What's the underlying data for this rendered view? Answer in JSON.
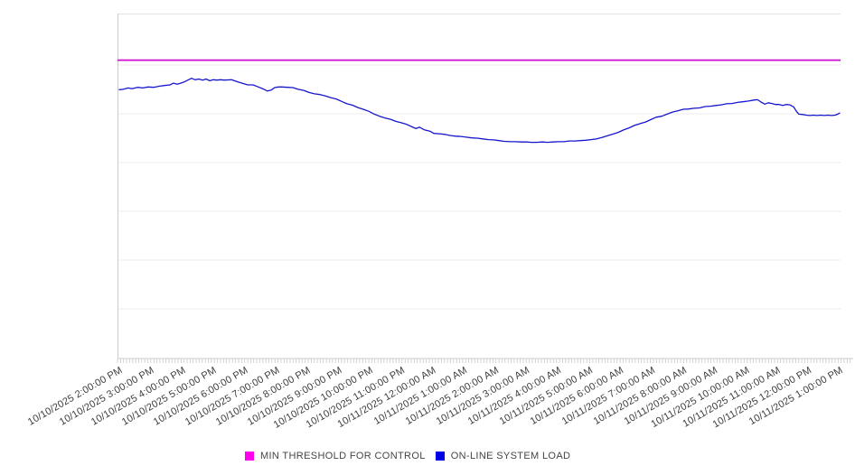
{
  "page": {
    "background": "#ffffff"
  },
  "legend": {
    "position": "bottom-center",
    "items": [
      {
        "label": "MIN THRESHOLD FOR CONTROL",
        "color": "#ff00ee"
      },
      {
        "label": "ON-LINE SYSTEM LOAD",
        "color": "#0000e6"
      }
    ]
  },
  "chart_data": {
    "type": "line",
    "title": "",
    "xlabel": "",
    "ylabel": "",
    "grid": "horizontal",
    "y_axis_tick_labels_visible": false,
    "value_units": "percent_of_plot_height",
    "ylim": [
      0,
      100
    ],
    "x_range_hours": [
      0,
      23
    ],
    "x_tick_labels": [
      "10/10/2025 2:00:00 PM",
      "10/10/2025 3:00:00 PM",
      "10/10/2025 4:00:00 PM",
      "10/10/2025 5:00:00 PM",
      "10/10/2025 6:00:00 PM",
      "10/10/2025 7:00:00 PM",
      "10/10/2025 8:00:00 PM",
      "10/10/2025 9:00:00 PM",
      "10/10/2025 10:00:00 PM",
      "10/10/2025 11:00:00 PM",
      "10/11/2025 12:00:00 AM",
      "10/11/2025 1:00:00 AM",
      "10/11/2025 2:00:00 AM",
      "10/11/2025 3:00:00 AM",
      "10/11/2025 4:00:00 AM",
      "10/11/2025 5:00:00 AM",
      "10/11/2025 6:00:00 AM",
      "10/11/2025 7:00:00 AM",
      "10/11/2025 8:00:00 AM",
      "10/11/2025 9:00:00 AM",
      "10/11/2025 10:00:00 AM",
      "10/11/2025 11:00:00 AM",
      "10/11/2025 12:00:00 PM",
      "10/11/2025 1:00:00 PM"
    ],
    "series": [
      {
        "name": "MIN THRESHOLD FOR CONTROL",
        "style": "horizontal-threshold",
        "color": "#cf0ccf",
        "value": 86.6
      },
      {
        "name": "ON-LINE SYSTEM LOAD",
        "style": "line",
        "color": "#1616cd",
        "points": [
          [
            0,
            78.0
          ],
          [
            0.12,
            78.1
          ],
          [
            0.29,
            78.5
          ],
          [
            0.4,
            78.3
          ],
          [
            0.58,
            78.7
          ],
          [
            0.75,
            78.5
          ],
          [
            0.92,
            78.8
          ],
          [
            1.1,
            78.7
          ],
          [
            1.27,
            79.0
          ],
          [
            1.44,
            79.2
          ],
          [
            1.62,
            79.4
          ],
          [
            1.73,
            79.9
          ],
          [
            1.85,
            79.6
          ],
          [
            1.96,
            79.9
          ],
          [
            2.08,
            80.3
          ],
          [
            2.19,
            80.8
          ],
          [
            2.31,
            81.3
          ],
          [
            2.42,
            80.9
          ],
          [
            2.54,
            81.1
          ],
          [
            2.66,
            80.8
          ],
          [
            2.77,
            81.1
          ],
          [
            2.89,
            80.6
          ],
          [
            3.0,
            80.9
          ],
          [
            3.12,
            80.8
          ],
          [
            3.23,
            80.9
          ],
          [
            3.35,
            80.8
          ],
          [
            3.58,
            80.9
          ],
          [
            3.75,
            80.4
          ],
          [
            3.92,
            79.9
          ],
          [
            4.1,
            79.4
          ],
          [
            4.27,
            79.4
          ],
          [
            4.44,
            78.8
          ],
          [
            4.62,
            78.1
          ],
          [
            4.73,
            77.6
          ],
          [
            4.85,
            77.9
          ],
          [
            4.96,
            78.6
          ],
          [
            5.08,
            78.8
          ],
          [
            5.19,
            78.8
          ],
          [
            5.37,
            78.7
          ],
          [
            5.54,
            78.6
          ],
          [
            5.71,
            78.1
          ],
          [
            5.89,
            77.8
          ],
          [
            6.06,
            77.2
          ],
          [
            6.23,
            76.8
          ],
          [
            6.41,
            76.6
          ],
          [
            6.58,
            76.2
          ],
          [
            6.75,
            75.7
          ],
          [
            6.93,
            75.3
          ],
          [
            7.1,
            74.6
          ],
          [
            7.27,
            73.9
          ],
          [
            7.45,
            73.5
          ],
          [
            7.62,
            72.8
          ],
          [
            7.79,
            72.3
          ],
          [
            7.97,
            71.7
          ],
          [
            8.14,
            70.9
          ],
          [
            8.31,
            70.3
          ],
          [
            8.48,
            69.8
          ],
          [
            8.66,
            69.4
          ],
          [
            8.83,
            68.8
          ],
          [
            9.0,
            68.4
          ],
          [
            9.18,
            67.9
          ],
          [
            9.35,
            67.2
          ],
          [
            9.47,
            66.7
          ],
          [
            9.58,
            67.1
          ],
          [
            9.75,
            66.3
          ],
          [
            9.93,
            65.9
          ],
          [
            10.04,
            65.3
          ],
          [
            10.22,
            65.2
          ],
          [
            10.39,
            65.0
          ],
          [
            10.56,
            64.7
          ],
          [
            10.74,
            64.5
          ],
          [
            10.91,
            64.4
          ],
          [
            11.08,
            64.2
          ],
          [
            11.26,
            64.0
          ],
          [
            11.43,
            63.9
          ],
          [
            11.6,
            63.7
          ],
          [
            11.78,
            63.5
          ],
          [
            11.95,
            63.4
          ],
          [
            12.12,
            63.2
          ],
          [
            12.29,
            63.0
          ],
          [
            12.47,
            62.9
          ],
          [
            12.64,
            62.9
          ],
          [
            12.81,
            62.8
          ],
          [
            12.99,
            62.8
          ],
          [
            13.16,
            62.7
          ],
          [
            13.33,
            62.7
          ],
          [
            13.51,
            62.8
          ],
          [
            13.68,
            62.7
          ],
          [
            13.85,
            62.8
          ],
          [
            14.03,
            62.9
          ],
          [
            14.2,
            62.9
          ],
          [
            14.37,
            63.1
          ],
          [
            14.55,
            63.1
          ],
          [
            14.72,
            63.2
          ],
          [
            14.89,
            63.3
          ],
          [
            15.06,
            63.5
          ],
          [
            15.24,
            63.7
          ],
          [
            15.41,
            64.1
          ],
          [
            15.58,
            64.6
          ],
          [
            15.76,
            65.1
          ],
          [
            15.93,
            65.6
          ],
          [
            16.1,
            66.3
          ],
          [
            16.28,
            66.9
          ],
          [
            16.45,
            67.6
          ],
          [
            16.62,
            68.1
          ],
          [
            16.8,
            68.6
          ],
          [
            16.97,
            69.3
          ],
          [
            17.14,
            70.0
          ],
          [
            17.32,
            70.3
          ],
          [
            17.49,
            70.9
          ],
          [
            17.66,
            71.5
          ],
          [
            17.84,
            71.9
          ],
          [
            18.01,
            72.3
          ],
          [
            18.18,
            72.4
          ],
          [
            18.35,
            72.6
          ],
          [
            18.53,
            72.7
          ],
          [
            18.7,
            73.1
          ],
          [
            18.87,
            73.2
          ],
          [
            19.05,
            73.4
          ],
          [
            19.22,
            73.6
          ],
          [
            19.39,
            73.9
          ],
          [
            19.57,
            74.0
          ],
          [
            19.74,
            74.3
          ],
          [
            19.91,
            74.5
          ],
          [
            20.09,
            74.7
          ],
          [
            20.26,
            75.0
          ],
          [
            20.38,
            75.1
          ],
          [
            20.49,
            74.4
          ],
          [
            20.61,
            73.8
          ],
          [
            20.72,
            74.2
          ],
          [
            20.84,
            74.0
          ],
          [
            20.95,
            73.7
          ],
          [
            21.07,
            73.7
          ],
          [
            21.18,
            73.4
          ],
          [
            21.3,
            73.7
          ],
          [
            21.41,
            73.6
          ],
          [
            21.53,
            73.0
          ],
          [
            21.62,
            71.7
          ],
          [
            21.7,
            70.9
          ],
          [
            21.82,
            70.8
          ],
          [
            21.93,
            70.6
          ],
          [
            22.05,
            70.5
          ],
          [
            22.16,
            70.6
          ],
          [
            22.28,
            70.5
          ],
          [
            22.39,
            70.6
          ],
          [
            22.51,
            70.5
          ],
          [
            22.63,
            70.6
          ],
          [
            22.74,
            70.5
          ],
          [
            22.86,
            70.6
          ],
          [
            22.94,
            70.9
          ],
          [
            23.0,
            71.2
          ]
        ]
      }
    ],
    "axis_colors": {
      "axis_line": "#cccccc",
      "gridline": "#ececec",
      "top_border": "#e3e3e3",
      "tick": "#c9c9c9",
      "tick_label": "#3d3d3d"
    }
  }
}
